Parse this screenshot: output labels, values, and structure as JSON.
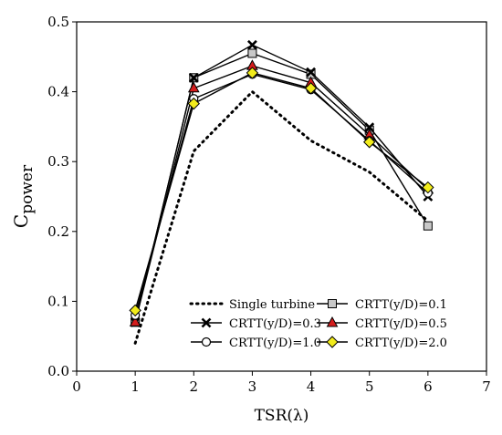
{
  "chart_data": {
    "type": "line",
    "xlabel": "TSR(λ)",
    "ylabel_main": "C",
    "ylabel_sub": "power",
    "xlim": [
      0,
      7
    ],
    "ylim": [
      0.0,
      0.5
    ],
    "xticks": [
      "0",
      "1",
      "2",
      "3",
      "4",
      "5",
      "6",
      "7"
    ],
    "yticks": [
      "0.0",
      "0.1",
      "0.2",
      "0.3",
      "0.4",
      "0.5"
    ],
    "grid": false,
    "legend_position": "bottom-right",
    "x": [
      1,
      2,
      3,
      4,
      5,
      6
    ],
    "series": [
      {
        "name": "Single turbine",
        "values": [
          0.04,
          0.315,
          0.4,
          0.33,
          0.285,
          0.215
        ],
        "style": "dotted",
        "marker": "none",
        "color": "#000000",
        "fill": "none"
      },
      {
        "name": "CRTT(y/D)=0.1",
        "values": [
          0.07,
          0.42,
          0.455,
          0.425,
          0.345,
          0.208
        ],
        "style": "solid",
        "marker": "square",
        "color": "#000000",
        "fill": "#c8c8c8"
      },
      {
        "name": "CRTT(y/D)=0.3",
        "values": [
          0.07,
          0.42,
          0.467,
          0.428,
          0.349,
          0.25
        ],
        "style": "solid",
        "marker": "x",
        "color": "#000000",
        "fill": "none"
      },
      {
        "name": "CRTT(y/D)=0.5",
        "values": [
          0.07,
          0.405,
          0.437,
          0.413,
          0.338,
          0.26
        ],
        "style": "solid",
        "marker": "triangle",
        "color": "#000000",
        "fill": "#d41c1c"
      },
      {
        "name": "CRTT(y/D)=1.0",
        "values": [
          0.08,
          0.39,
          0.425,
          0.403,
          0.33,
          0.255
        ],
        "style": "solid",
        "marker": "circle",
        "color": "#000000",
        "fill": "#ffffff"
      },
      {
        "name": "CRTT(y/D)=2.0",
        "values": [
          0.087,
          0.383,
          0.427,
          0.405,
          0.328,
          0.263
        ],
        "style": "solid",
        "marker": "diamond",
        "color": "#000000",
        "fill": "#f2ec1c"
      }
    ]
  }
}
